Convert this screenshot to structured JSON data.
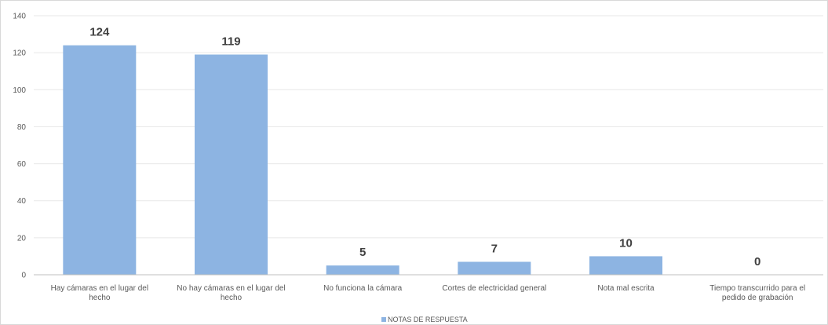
{
  "chart_data": {
    "type": "bar",
    "categories": [
      [
        "Hay cámaras en el lugar del",
        "hecho"
      ],
      [
        "No hay cámaras en el lugar del",
        "hecho"
      ],
      [
        "No funciona la cámara"
      ],
      [
        "Cortes de electricidad general"
      ],
      [
        "Nota mal escrita"
      ],
      [
        "Tiempo transcurrido para el",
        "pedido de grabación"
      ]
    ],
    "series": [
      {
        "name": "NOTAS DE RESPUESTA",
        "values": [
          124,
          119,
          5,
          7,
          10,
          0
        ]
      }
    ],
    "ylim": [
      0,
      140
    ],
    "yticks": [
      0,
      20,
      40,
      60,
      80,
      100,
      120,
      140
    ],
    "grid": true,
    "legend_position": "bottom",
    "colors": {
      "bar": "#8db4e2",
      "gridline": "#e7e7e7",
      "axis": "#bfbfbf"
    }
  }
}
